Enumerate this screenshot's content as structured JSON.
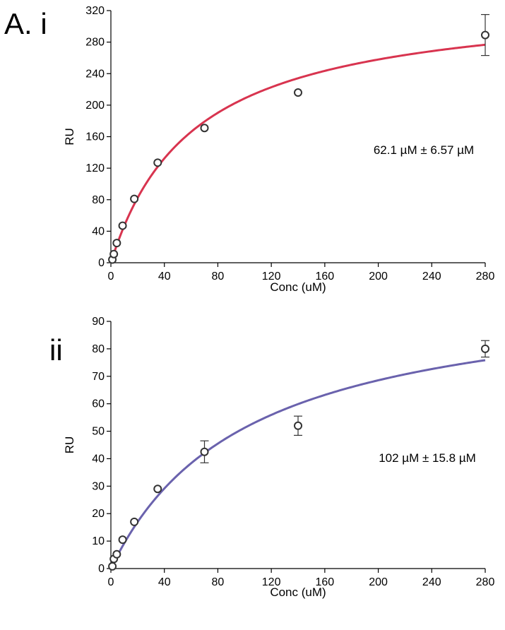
{
  "figure": {
    "panel_label_a": "A. i",
    "panel_label_b": "ii"
  },
  "chart_data": [
    {
      "type": "scatter",
      "panel": "i",
      "xlabel": "Conc (uM)",
      "ylabel": "RU",
      "xlim": [
        0,
        280
      ],
      "ylim": [
        0,
        320
      ],
      "xticks": [
        0,
        40,
        80,
        120,
        160,
        200,
        240,
        280
      ],
      "yticks": [
        0,
        40,
        80,
        120,
        160,
        200,
        240,
        280,
        320
      ],
      "annotation": "62.1 µM ± 6.57 µM",
      "fit": {
        "model": "one-site binding",
        "Kd": 62.1,
        "Bmax": 338,
        "color": "#d8344f"
      },
      "points": [
        {
          "x": 1.1,
          "y": 4
        },
        {
          "x": 2.2,
          "y": 11
        },
        {
          "x": 4.4,
          "y": 25
        },
        {
          "x": 8.75,
          "y": 47
        },
        {
          "x": 17.5,
          "y": 81
        },
        {
          "x": 35,
          "y": 127
        },
        {
          "x": 70,
          "y": 171
        },
        {
          "x": 140,
          "y": 216
        },
        {
          "x": 280,
          "y": 289,
          "err": 26
        }
      ],
      "grid": false
    },
    {
      "type": "scatter",
      "panel": "ii",
      "xlabel": "Conc (uM)",
      "ylabel": "RU",
      "xlim": [
        0,
        280
      ],
      "ylim": [
        0,
        90
      ],
      "xticks": [
        0,
        40,
        80,
        120,
        160,
        200,
        240,
        280
      ],
      "yticks": [
        0,
        10,
        20,
        30,
        40,
        50,
        60,
        70,
        80,
        90
      ],
      "annotation": "102 µM ± 15.8 µM",
      "fit": {
        "model": "one-site binding",
        "Kd": 102,
        "Bmax": 103.5,
        "color": "#6a62ad"
      },
      "points": [
        {
          "x": 1.1,
          "y": 0.8
        },
        {
          "x": 2.2,
          "y": 3.5
        },
        {
          "x": 4.4,
          "y": 5.2
        },
        {
          "x": 8.75,
          "y": 10.5
        },
        {
          "x": 17.5,
          "y": 17
        },
        {
          "x": 35,
          "y": 29
        },
        {
          "x": 70,
          "y": 42.5,
          "err": 4
        },
        {
          "x": 140,
          "y": 52,
          "err": 3.5
        },
        {
          "x": 280,
          "y": 80,
          "err": 3
        }
      ],
      "grid": false
    }
  ]
}
